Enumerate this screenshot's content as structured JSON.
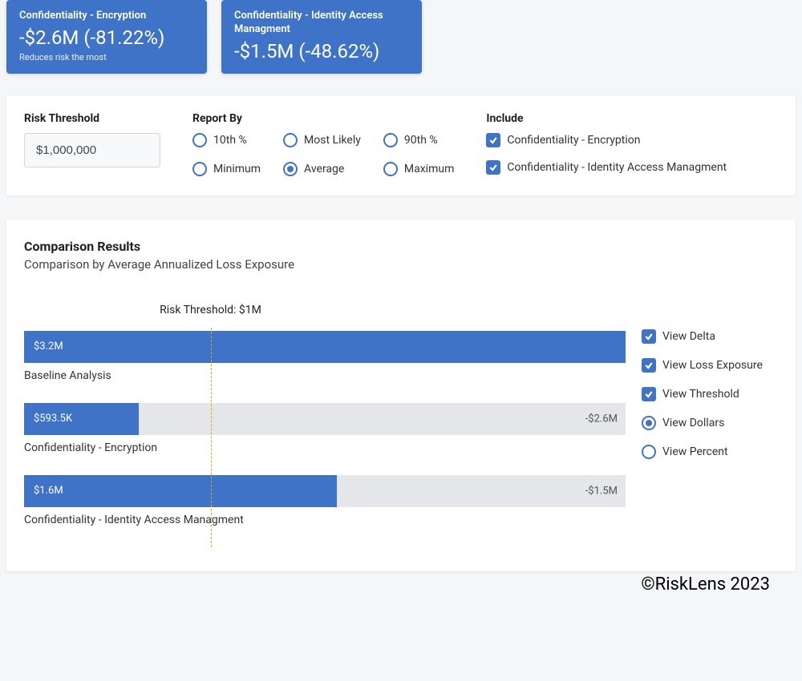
{
  "colors": {
    "primary": "#3e73c7",
    "bar_bg": "#e4e6e9",
    "threshold_line": "#e0a800",
    "page_bg": "#f5f6f8",
    "panel_bg": "#ffffff"
  },
  "cards": [
    {
      "title": "Confidentiality - Encryption",
      "value": "-$2.6M (-81.22%)",
      "note": "Reduces risk the most"
    },
    {
      "title": "Confidentiality - Identity Access Managment",
      "value": "-$1.5M (-48.62%)",
      "note": ""
    }
  ],
  "filters": {
    "risk_threshold": {
      "label": "Risk Threshold",
      "value": "$1,000,000"
    },
    "report_by": {
      "label": "Report By",
      "options": [
        {
          "label": "10th %",
          "checked": false
        },
        {
          "label": "Most Likely",
          "checked": false
        },
        {
          "label": "90th %",
          "checked": false
        },
        {
          "label": "Minimum",
          "checked": false
        },
        {
          "label": "Average",
          "checked": true
        },
        {
          "label": "Maximum",
          "checked": false
        }
      ]
    },
    "include": {
      "label": "Include",
      "options": [
        {
          "label": "Confidentiality - Encryption",
          "checked": true
        },
        {
          "label": "Confidentiality - Identity Access Managment",
          "checked": true
        }
      ]
    }
  },
  "results": {
    "title": "Comparison Results",
    "subtitle": "Comparison by Average Annualized Loss Exposure",
    "threshold": {
      "label": "Risk Threshold: $1M",
      "position_pct": 31
    },
    "chart": {
      "type": "bar",
      "max_value_m": 3.2,
      "bar_color": "#3e73c7",
      "track_color": "#e4e6e9",
      "bars": [
        {
          "label": "Baseline Analysis",
          "value_label": "$3.2M",
          "fill_pct": 100,
          "ghost_pct": 0,
          "delta": ""
        },
        {
          "label": "Confidentiality - Encryption",
          "value_label": "$593.5K",
          "fill_pct": 19,
          "ghost_pct": 100,
          "delta": "-$2.6M"
        },
        {
          "label": "Confidentiality - Identity Access Managment",
          "value_label": "$1.6M",
          "fill_pct": 52,
          "ghost_pct": 100,
          "delta": "-$1.5M"
        }
      ]
    },
    "toggles": {
      "checks": [
        {
          "label": "View Delta",
          "checked": true
        },
        {
          "label": "View Loss Exposure",
          "checked": true
        },
        {
          "label": "View Threshold",
          "checked": true
        }
      ],
      "radios": [
        {
          "label": "View Dollars",
          "checked": true
        },
        {
          "label": "View Percent",
          "checked": false
        }
      ]
    }
  },
  "copyright": "©RiskLens 2023"
}
